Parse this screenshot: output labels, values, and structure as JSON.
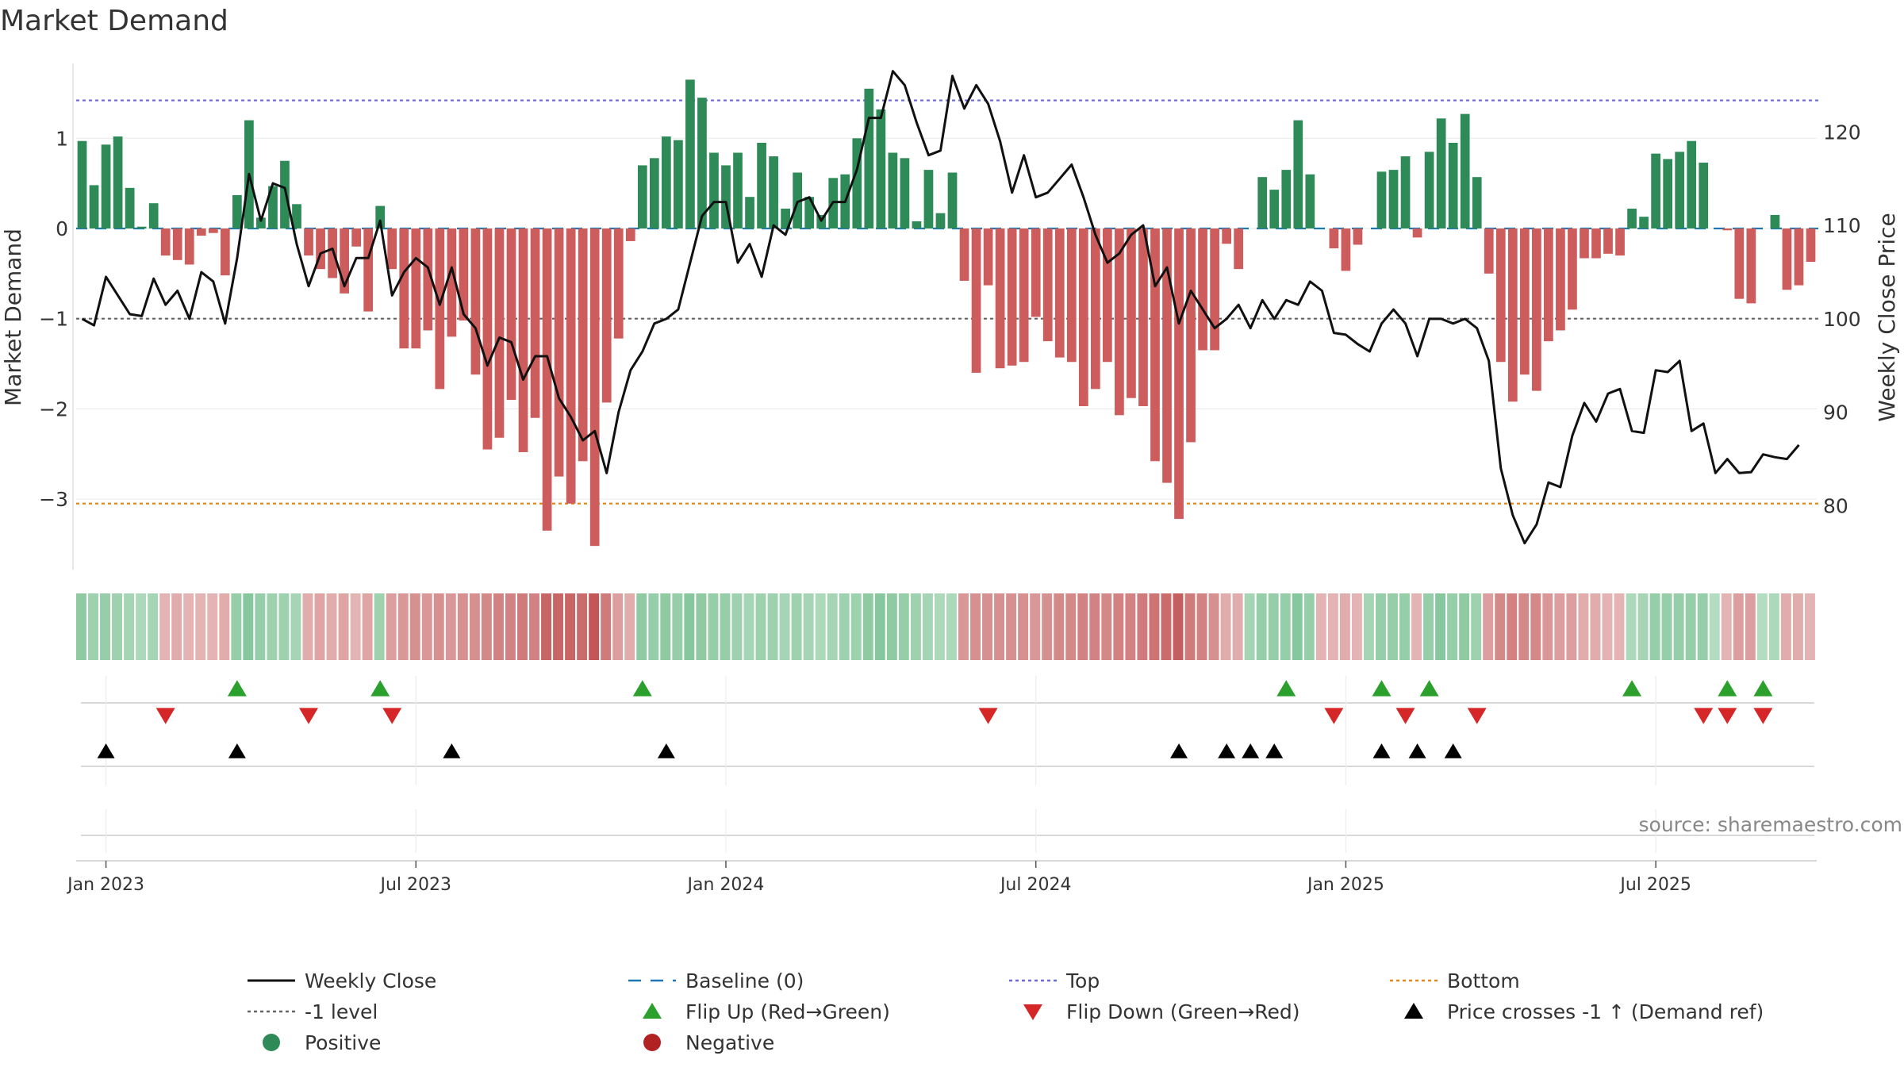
{
  "chart_data": {
    "type": "bar",
    "title": "Market Demand",
    "ylabel_left": "Market Demand",
    "ylabel_right": "Weekly Close Price",
    "source": "source: sharemaestro.com",
    "ylim_left": [
      -3.8,
      1.9
    ],
    "ylim_right": [
      73,
      128
    ],
    "yticks_left": [
      {
        "v": 1,
        "label": "1"
      },
      {
        "v": 0,
        "label": "0"
      },
      {
        "v": -1,
        "label": "−1"
      },
      {
        "v": -2,
        "label": "−2"
      },
      {
        "v": -3,
        "label": "−3"
      }
    ],
    "yticks_right": [
      {
        "v": 120,
        "label": "120"
      },
      {
        "v": 110,
        "label": "110"
      },
      {
        "v": 100,
        "label": "100"
      },
      {
        "v": 90,
        "label": "90"
      },
      {
        "v": 80,
        "label": "80"
      }
    ],
    "x_start": "2022-12-26",
    "xticks": [
      {
        "week": 2,
        "label": "Jan 2023"
      },
      {
        "week": 28,
        "label": "Jul 2023"
      },
      {
        "week": 54,
        "label": "Jan 2024"
      },
      {
        "week": 80,
        "label": "Jul 2024"
      },
      {
        "week": 106,
        "label": "Jan 2025"
      },
      {
        "week": 132,
        "label": "Jul 2025"
      }
    ],
    "reference_lines": {
      "top": 1.42,
      "minus_one": -1,
      "bottom": -3.05,
      "baseline": 0
    },
    "colors": {
      "positive": "#2e8b57",
      "negative": "#cd5c5c",
      "close": "#111111",
      "top": "#6a6ad2",
      "bottom": "#e08a1e",
      "minus_one": "#666666",
      "baseline": "#1f77b4",
      "flip_up": "#2ca02c",
      "flip_down": "#d62728",
      "cross": "#000000"
    },
    "demand": [
      0.97,
      0.48,
      0.93,
      1.02,
      0.45,
      0.02,
      0.28,
      -0.3,
      -0.35,
      -0.4,
      -0.08,
      -0.05,
      -0.52,
      0.37,
      1.2,
      0.12,
      0.47,
      0.75,
      0.27,
      -0.3,
      -0.45,
      -0.55,
      -0.72,
      -0.2,
      -0.92,
      0.25,
      -0.45,
      -1.33,
      -1.33,
      -1.13,
      -1.78,
      -1.2,
      -1.02,
      -1.62,
      -2.45,
      -2.32,
      -1.9,
      -2.48,
      -2.1,
      -3.35,
      -2.75,
      -3.05,
      -2.58,
      -3.52,
      -1.93,
      -1.22,
      -0.14,
      0.7,
      0.78,
      1.02,
      0.98,
      1.65,
      1.45,
      0.84,
      0.7,
      0.84,
      0.35,
      0.95,
      0.8,
      0.22,
      0.62,
      0.35,
      0.15,
      0.56,
      0.6,
      1.0,
      1.55,
      1.32,
      0.84,
      0.78,
      0.08,
      0.65,
      0.17,
      0.62,
      -0.58,
      -1.6,
      -0.63,
      -1.55,
      -1.52,
      -1.48,
      -0.98,
      -1.25,
      -1.43,
      -1.48,
      -1.97,
      -1.78,
      -1.48,
      -2.07,
      -1.88,
      -1.97,
      -2.58,
      -2.82,
      -3.22,
      -2.37,
      -1.35,
      -1.35,
      -0.17,
      -0.45,
      0.0,
      0.57,
      0.43,
      0.65,
      1.2,
      0.6,
      0.0,
      -0.22,
      -0.47,
      -0.18,
      0.0,
      0.63,
      0.65,
      0.8,
      -0.1,
      0.85,
      1.22,
      0.95,
      1.27,
      0.57,
      -0.5,
      -1.48,
      -1.92,
      -1.62,
      -1.8,
      -1.25,
      -1.13,
      -0.9,
      -0.33,
      -0.33,
      -0.28,
      -0.3,
      0.22,
      0.13,
      0.83,
      0.77,
      0.85,
      0.97,
      0.73,
      0.0,
      -0.02,
      -0.78,
      -0.83,
      0.0,
      0.15,
      -0.68,
      -0.63,
      -0.37
    ],
    "close": [
      100.0,
      99.3,
      104.5,
      102.5,
      100.5,
      100.3,
      104.3,
      101.5,
      103.0,
      100.0,
      105.0,
      104.0,
      99.5,
      106.5,
      115.5,
      110.5,
      114.5,
      114.0,
      108.0,
      103.5,
      107.0,
      107.5,
      103.5,
      106.5,
      106.5,
      110.5,
      102.5,
      105.0,
      106.5,
      105.5,
      101.5,
      105.5,
      100.5,
      99.0,
      95.0,
      98.0,
      97.5,
      93.5,
      96.0,
      96.0,
      91.5,
      89.5,
      87.0,
      88.0,
      83.5,
      90.0,
      94.5,
      96.5,
      99.5,
      100.0,
      101.0,
      106.0,
      111.0,
      112.5,
      112.5,
      106.0,
      108.0,
      104.5,
      110.0,
      109.0,
      112.5,
      113.0,
      110.5,
      112.5,
      112.5,
      116.0,
      121.5,
      121.5,
      126.5,
      125.0,
      121.0,
      117.5,
      118.0,
      126.0,
      122.5,
      125.0,
      123.0,
      119.0,
      113.5,
      117.5,
      113.0,
      113.5,
      115.0,
      116.5,
      113.0,
      109.0,
      106.0,
      107.0,
      109.0,
      110.0,
      103.5,
      105.5,
      99.5,
      103.0,
      101.0,
      99.0,
      100.0,
      101.5,
      99.0,
      102.0,
      100.0,
      102.0,
      101.5,
      104.0,
      103.0,
      98.5,
      98.3,
      97.3,
      96.5,
      99.5,
      101.0,
      99.5,
      96.0,
      100.0,
      100.0,
      99.5,
      100.0,
      99.0,
      95.5,
      84.0,
      79.0,
      76.0,
      78.0,
      82.5,
      82.0,
      87.5,
      91.0,
      89.0,
      92.0,
      92.5,
      88.0,
      87.8,
      94.5,
      94.3,
      95.5,
      88.0,
      88.8,
      83.5,
      85.0,
      83.5,
      83.6,
      85.5,
      85.2,
      85.0,
      86.5
    ],
    "heat": [
      0.55,
      0.45,
      0.5,
      0.45,
      0.4,
      0.35,
      0.4,
      -0.3,
      -0.35,
      -0.3,
      -0.3,
      -0.3,
      -0.35,
      0.5,
      0.6,
      0.5,
      0.45,
      0.45,
      0.4,
      -0.35,
      -0.4,
      -0.35,
      -0.4,
      -0.3,
      -0.4,
      0.45,
      -0.45,
      -0.5,
      -0.55,
      -0.5,
      -0.55,
      -0.5,
      -0.55,
      -0.55,
      -0.6,
      -0.65,
      -0.65,
      -0.7,
      -0.65,
      -0.85,
      -0.85,
      -0.85,
      -0.8,
      -0.95,
      -0.7,
      -0.45,
      -0.35,
      0.55,
      0.5,
      0.55,
      0.5,
      0.6,
      0.55,
      0.5,
      0.5,
      0.45,
      0.4,
      0.45,
      0.45,
      0.4,
      0.45,
      0.4,
      0.35,
      0.4,
      0.45,
      0.45,
      0.55,
      0.6,
      0.55,
      0.5,
      0.45,
      0.4,
      0.35,
      0.35,
      -0.5,
      -0.55,
      -0.55,
      -0.55,
      -0.55,
      -0.55,
      -0.5,
      -0.55,
      -0.6,
      -0.6,
      -0.65,
      -0.65,
      -0.6,
      -0.65,
      -0.65,
      -0.7,
      -0.75,
      -0.8,
      -0.9,
      -0.7,
      -0.65,
      -0.55,
      -0.35,
      -0.35,
      0.4,
      0.5,
      0.5,
      0.5,
      0.6,
      0.5,
      -0.3,
      -0.3,
      -0.35,
      -0.3,
      0.4,
      0.5,
      0.5,
      0.5,
      -0.3,
      0.5,
      0.6,
      0.5,
      0.55,
      0.45,
      -0.45,
      -0.6,
      -0.65,
      -0.6,
      -0.6,
      -0.5,
      -0.45,
      -0.45,
      -0.35,
      -0.35,
      -0.3,
      -0.3,
      0.35,
      0.4,
      0.5,
      0.5,
      0.5,
      0.5,
      0.5,
      0.3,
      -0.3,
      -0.45,
      -0.45,
      0.3,
      0.35,
      -0.35,
      -0.35,
      -0.3
    ],
    "flip_up": [
      13,
      25,
      47,
      101,
      109,
      113,
      130,
      138,
      141
    ],
    "flip_down": [
      7,
      19,
      26,
      76,
      105,
      111,
      117,
      136,
      138,
      141
    ],
    "cross_up": [
      2,
      13,
      31,
      49,
      92,
      96,
      98,
      100,
      109,
      112,
      115
    ],
    "legend": [
      {
        "key": "close",
        "label": "Weekly Close",
        "kind": "line"
      },
      {
        "key": "baseline",
        "label": "Baseline (0)",
        "kind": "dash"
      },
      {
        "key": "top",
        "label": "Top",
        "kind": "dot"
      },
      {
        "key": "bottom",
        "label": "Bottom",
        "kind": "dot"
      },
      {
        "key": "minus_one",
        "label": "-1 level",
        "kind": "dot"
      },
      {
        "key": "flip_up",
        "label": "Flip Up (Red→Green)",
        "kind": "tri-up"
      },
      {
        "key": "flip_down",
        "label": "Flip Down (Green→Red)",
        "kind": "tri-down"
      },
      {
        "key": "cross",
        "label": "Price crosses -1 ↑ (Demand ref)",
        "kind": "tri-up"
      },
      {
        "key": "positive",
        "label": "Positive",
        "kind": "circle"
      },
      {
        "key": "negative",
        "label": "Negative",
        "kind": "circle",
        "color": "#b22222"
      }
    ]
  }
}
